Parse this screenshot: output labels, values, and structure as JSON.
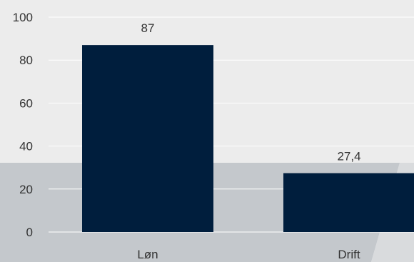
{
  "chart_data": {
    "type": "bar",
    "categories": [
      "Løn",
      "Drift"
    ],
    "values": [
      87,
      27.4
    ],
    "data_labels": [
      "87",
      "27,4"
    ],
    "title": "",
    "xlabel": "",
    "ylabel": "",
    "ylim": [
      0,
      100
    ],
    "yticks": [
      0,
      20,
      40,
      60,
      80,
      100
    ],
    "grid": true,
    "legend": "none"
  },
  "colors": {
    "bar": "#001e3d",
    "grid": "#ffffff",
    "text": "#333333",
    "bg_light": "#ececec",
    "bg_band": "#c4c8cc"
  }
}
